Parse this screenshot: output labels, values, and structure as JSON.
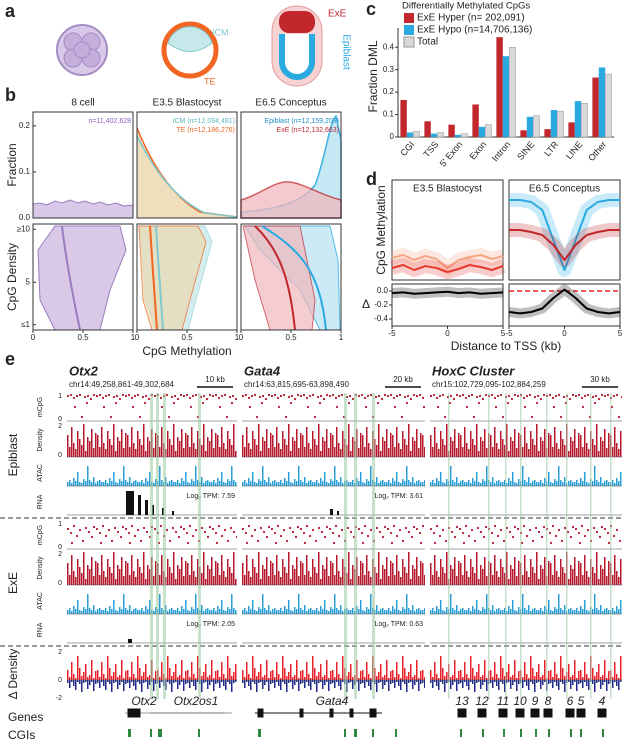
{
  "figure": {
    "panel_labels": [
      "a",
      "b",
      "c",
      "d",
      "e"
    ],
    "a": {
      "icm": "ICM",
      "te": "TE",
      "exe": "ExE",
      "epiblast": "Epiblast"
    },
    "b": {
      "columns": [
        "8 cell",
        "E3.5 Blastocyst",
        "E6.5 Conceptus"
      ],
      "n_labels": [
        "n=11,402,628",
        "ICM (n=12,094,481)",
        "TE (n=12,186,276)",
        "Epiblast (n=12,159,209)",
        "ExE (n=12,132,663)"
      ],
      "fraction_label": "Fraction",
      "fraction_ylim": [
        0,
        0.23
      ],
      "fraction_ticks": [
        0.2,
        0.1,
        {
          "value": 0,
          "label": "0.0"
        }
      ],
      "density_label": "CpG Density",
      "density_ylim": [
        0.5,
        10.5
      ],
      "density_ticks": [
        {
          "value": 10,
          "label": "≥10"
        },
        5,
        {
          "value": 1,
          "label": "≤1"
        }
      ],
      "xlim": [
        0,
        1
      ],
      "x_ticks": [
        0,
        0.5,
        1
      ],
      "x_label": "CpG Methylation"
    },
    "e": {
      "loci": [
        {
          "gene": "Otx2",
          "coords": "chr14:49,258,861-49,302,684",
          "scale": "10 kb",
          "rna_epiblast": "Log₂ TPM: 7.59",
          "rna_exe": "Log₂ TPM: 2.05"
        },
        {
          "gene": "Gata4",
          "coords": "chr14:63,815,695-63,898,490",
          "scale": "20 kb",
          "rna_epiblast": "Log₂ TPM: 3.61",
          "rna_exe": "Log₂ TPM: 0.63"
        },
        {
          "gene": "HoxC Cluster",
          "coords": "chr15:102,729,095-102,884,259",
          "scale": "30 kb"
        }
      ],
      "groups": [
        "Epiblast",
        "ExE"
      ],
      "tracks": [
        "mCpG",
        "Density",
        "ATAC",
        "RNA"
      ],
      "delta_label": "Δ Density",
      "mcpg_ticks": [
        1,
        0
      ],
      "density_ticks": [
        2,
        0
      ],
      "delta_ticks": [
        2,
        0,
        -2
      ],
      "genes_label": "Genes",
      "cgis_label": "CGIs",
      "gene_names": [
        "Otx2",
        "Otx2os1",
        "Gata4",
        "13",
        "12",
        "11",
        "10",
        "9",
        "8",
        "6",
        "5",
        "4"
      ]
    }
  },
  "chart_data": [
    {
      "type": "bar",
      "title": "Differentially Methylated CpGs",
      "ylabel": "Fraction DML",
      "categories": [
        "CGI",
        "TSS",
        "5' Exon",
        "Exon",
        "Intron",
        "SINE",
        "LTR",
        "LINE",
        "Other"
      ],
      "series": [
        {
          "name": "ExE Hyper (n= 202,091)",
          "color": "#c1272d",
          "values": [
            0.165,
            0.07,
            0.055,
            0.145,
            0.445,
            0.03,
            0.035,
            0.065,
            0.265
          ]
        },
        {
          "name": "ExE Hypo (n=14,706,136)",
          "color": "#29abe2",
          "values": [
            0.02,
            0.015,
            0.01,
            0.045,
            0.36,
            0.09,
            0.12,
            0.16,
            0.31
          ]
        },
        {
          "name": "Total",
          "color": "#d9d9d9",
          "values": [
            0.025,
            0.02,
            0.015,
            0.055,
            0.4,
            0.095,
            0.115,
            0.15,
            0.28
          ]
        }
      ],
      "ylim": [
        0,
        0.45
      ],
      "yticks": [
        0,
        0.1,
        0.2,
        0.3,
        0.4
      ],
      "legend": "upper left"
    },
    {
      "type": "line",
      "title": "E3.5 Blastocyst",
      "ylabel": "CpG Methylation",
      "x": [
        -5,
        -4,
        -3,
        -2,
        -1,
        0,
        1,
        2,
        3,
        4,
        5
      ],
      "series": [
        {
          "color": "#f4a582",
          "values": [
            0.22,
            0.25,
            0.2,
            0.24,
            0.21,
            0.12,
            0.2,
            0.23,
            0.25,
            0.21,
            0.24
          ]
        },
        {
          "color": "#e8382e",
          "values": [
            0.12,
            0.15,
            0.1,
            0.14,
            0.12,
            0.08,
            0.11,
            0.15,
            0.13,
            0.1,
            0.14
          ]
        }
      ],
      "xlim": [
        -5,
        5
      ],
      "ylim": [
        0,
        1
      ]
    },
    {
      "type": "line",
      "title": "E6.5 Conceptus",
      "x": [
        -5,
        -4,
        -3,
        -2,
        -1,
        0,
        1,
        2,
        3,
        4,
        5
      ],
      "series": [
        {
          "color": "#29abe2",
          "values": [
            0.8,
            0.8,
            0.78,
            0.7,
            0.4,
            0.1,
            0.4,
            0.7,
            0.78,
            0.8,
            0.8
          ]
        },
        {
          "color": "#c1272d",
          "values": [
            0.5,
            0.5,
            0.48,
            0.45,
            0.35,
            0.2,
            0.35,
            0.45,
            0.48,
            0.5,
            0.5
          ]
        }
      ],
      "xlim": [
        -5,
        5
      ],
      "ylim": [
        0,
        1
      ]
    },
    {
      "type": "line",
      "ylabel": "Δ",
      "x": [
        -5,
        -4,
        -3,
        -2,
        -1,
        0,
        1,
        2,
        3,
        4,
        5
      ],
      "series": [
        {
          "color": "#000000",
          "values": [
            -0.03,
            -0.02,
            -0.04,
            -0.03,
            -0.02,
            -0.01,
            -0.03,
            -0.02,
            -0.04,
            -0.03,
            -0.02
          ]
        }
      ],
      "xlim": [
        -5,
        5
      ],
      "ylim": [
        -0.5,
        0.1
      ],
      "yticks": [
        {
          "value": 0,
          "label": "0.0"
        },
        {
          "value": -0.2,
          "label": "-0.2"
        },
        {
          "value": -0.4,
          "label": "-0.4"
        }
      ],
      "xticks": [
        -5,
        0,
        5
      ]
    },
    {
      "type": "line",
      "xlabel": "Distance to TSS (kb)",
      "x": [
        -5,
        -4,
        -3,
        -2,
        -1,
        0,
        1,
        2,
        3,
        4,
        5
      ],
      "series": [
        {
          "color": "#000000",
          "values": [
            -0.3,
            -0.32,
            -0.3,
            -0.25,
            -0.1,
            0.02,
            -0.1,
            -0.25,
            -0.3,
            -0.32,
            -0.3
          ]
        }
      ],
      "xlim": [
        -5,
        5
      ],
      "ylim": [
        -0.5,
        0.1
      ],
      "xticks": [
        -5,
        0,
        5
      ],
      "reference_line": {
        "value": 0,
        "color": "#e8202a"
      }
    }
  ]
}
